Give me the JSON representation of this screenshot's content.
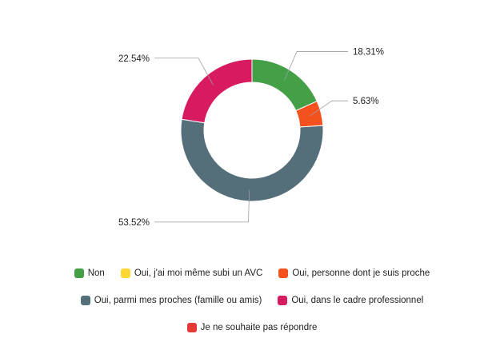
{
  "chart_data": {
    "type": "pie",
    "donut": true,
    "title": "",
    "slices": [
      {
        "label": "Non",
        "value": 18.31,
        "display": "18.31%",
        "color": "#43a047"
      },
      {
        "label": "Oui, j'ai moi même subi un AVC",
        "value": 0,
        "display": "",
        "color": "#fdd835"
      },
      {
        "label": "Oui, personne dont je suis proche",
        "value": 5.63,
        "display": "5.63%",
        "color": "#f4511e"
      },
      {
        "label": "Oui, parmi mes proches (famille ou amis)",
        "value": 53.52,
        "display": "53.52%",
        "color": "#546e7a"
      },
      {
        "label": "Oui, dans le cadre professionnel",
        "value": 22.54,
        "display": "22.54%",
        "color": "#d81b60"
      },
      {
        "label": "Je ne souhaite pas répondre",
        "value": 0,
        "display": "",
        "color": "#e53935"
      }
    ],
    "legend_position": "bottom",
    "legend_rows": [
      [
        0,
        1,
        2
      ],
      [
        3,
        4
      ],
      [
        5
      ]
    ]
  }
}
